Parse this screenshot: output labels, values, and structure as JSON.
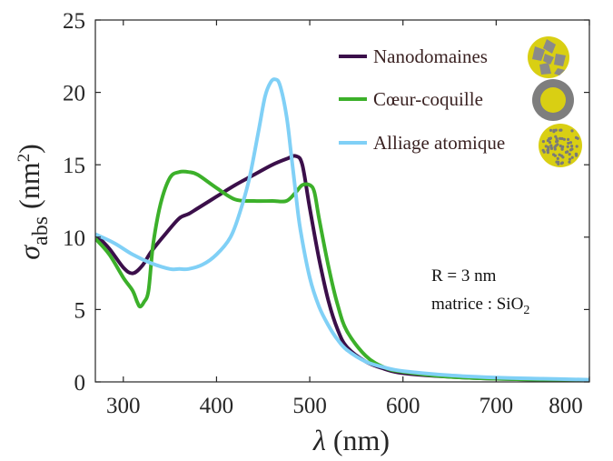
{
  "chart_data": {
    "type": "line",
    "xlabel_symbol": "λ",
    "xlabel_unit": "(nm)",
    "ylabel_symbol": "σ",
    "ylabel_sub": "abs",
    "ylabel_unit_open": "(nm",
    "ylabel_unit_sup": "2",
    "ylabel_unit_close": ")",
    "xlim": [
      270,
      800
    ],
    "ylim": [
      0,
      25
    ],
    "xticks": [
      300,
      400,
      500,
      600,
      700,
      800
    ],
    "yticks": [
      0,
      5,
      10,
      15,
      20,
      25
    ],
    "grid": false,
    "legend_position": "top-right",
    "annotation": {
      "line1": "R = 3 nm",
      "line2_prefix": "matrice : SiO",
      "line2_sub": "2"
    },
    "series": [
      {
        "name": "Nanodomaines",
        "color": "#3b0f4a",
        "icon": "nanodomain-particle-icon",
        "x": [
          270,
          285,
          300,
          310,
          320,
          330,
          345,
          360,
          370,
          380,
          400,
          420,
          440,
          460,
          475,
          485,
          492,
          500,
          510,
          520,
          530,
          540,
          560,
          580,
          600,
          650,
          700,
          750,
          800
        ],
        "y": [
          10.2,
          9.2,
          7.9,
          7.5,
          8.0,
          9.0,
          10.2,
          11.3,
          11.6,
          12.0,
          12.8,
          13.6,
          14.3,
          15.0,
          15.4,
          15.6,
          15.0,
          12.0,
          8.5,
          5.6,
          3.6,
          2.4,
          1.4,
          0.9,
          0.6,
          0.35,
          0.22,
          0.15,
          0.1
        ]
      },
      {
        "name": "Cœur-coquille",
        "color": "#3cb02a",
        "icon": "core-shell-particle-icon",
        "x": [
          270,
          285,
          300,
          310,
          315,
          318,
          322,
          327,
          332,
          340,
          350,
          360,
          370,
          380,
          400,
          420,
          440,
          460,
          475,
          485,
          492,
          500,
          505,
          510,
          520,
          530,
          540,
          560,
          580,
          600,
          650,
          700,
          750,
          800
        ],
        "y": [
          9.9,
          8.8,
          7.2,
          6.3,
          5.5,
          5.2,
          5.5,
          6.3,
          9.5,
          12.3,
          14.1,
          14.5,
          14.5,
          14.3,
          13.4,
          12.6,
          12.5,
          12.5,
          12.5,
          13.1,
          13.6,
          13.6,
          13.1,
          11.3,
          8.0,
          5.3,
          3.5,
          1.8,
          1.0,
          0.7,
          0.35,
          0.22,
          0.15,
          0.1
        ]
      },
      {
        "name": "Alliage atomique",
        "color": "#80d0f6",
        "icon": "atomic-alloy-particle-icon",
        "x": [
          270,
          290,
          310,
          330,
          350,
          360,
          370,
          385,
          400,
          415,
          425,
          435,
          445,
          452,
          458,
          463,
          468,
          475,
          480,
          485,
          490,
          500,
          510,
          520,
          530,
          540,
          560,
          580,
          600,
          650,
          700,
          750,
          800
        ],
        "y": [
          10.2,
          9.6,
          8.8,
          8.2,
          7.8,
          7.8,
          7.8,
          8.1,
          8.8,
          10.0,
          11.7,
          14.0,
          17.3,
          19.7,
          20.7,
          20.9,
          20.5,
          18.4,
          15.8,
          13.0,
          10.5,
          7.2,
          5.2,
          3.9,
          2.9,
          2.2,
          1.4,
          1.0,
          0.75,
          0.45,
          0.3,
          0.22,
          0.15
        ]
      }
    ]
  }
}
